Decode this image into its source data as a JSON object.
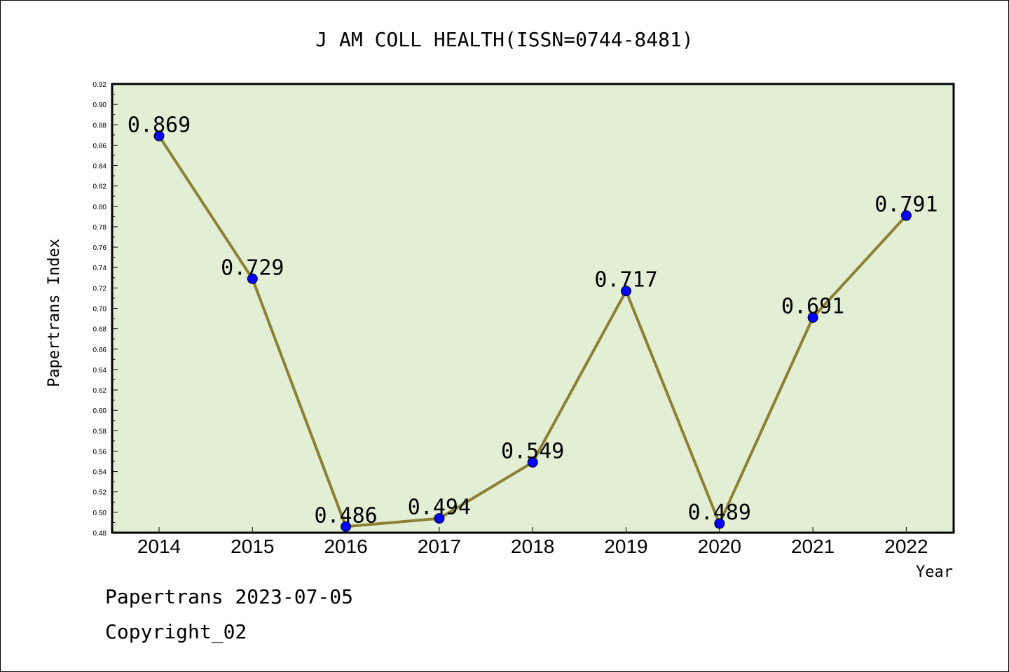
{
  "chart_data": {
    "type": "line",
    "title": "J AM COLL HEALTH(ISSN=0744-8481)",
    "xlabel": "Year",
    "ylabel": "Papertrans Index",
    "categories": [
      "2014",
      "2015",
      "2016",
      "2017",
      "2018",
      "2019",
      "2020",
      "2021",
      "2022"
    ],
    "values": [
      0.869,
      0.729,
      0.486,
      0.494,
      0.549,
      0.717,
      0.489,
      0.691,
      0.791
    ],
    "data_labels": [
      "0.869",
      "0.729",
      "0.486",
      "0.494",
      "0.549",
      "0.717",
      "0.489",
      "0.691",
      "0.791"
    ],
    "y_ticks": [
      "0.48",
      "0.50",
      "0.52",
      "0.54",
      "0.56",
      "0.58",
      "0.60",
      "0.62",
      "0.64",
      "0.66",
      "0.68",
      "0.70",
      "0.72",
      "0.74",
      "0.76",
      "0.78",
      "0.80",
      "0.82",
      "0.84",
      "0.86",
      "0.88",
      "0.90",
      "0.92"
    ],
    "ylim": [
      0.48,
      0.92
    ],
    "grid": false,
    "legend": "none",
    "colors": {
      "plot_background": "#e2efd5",
      "line": "#8c8033",
      "marker": "#0000ff"
    }
  },
  "footer": {
    "line1": "Papertrans 2023-07-05",
    "line2": "Copyright_02"
  }
}
